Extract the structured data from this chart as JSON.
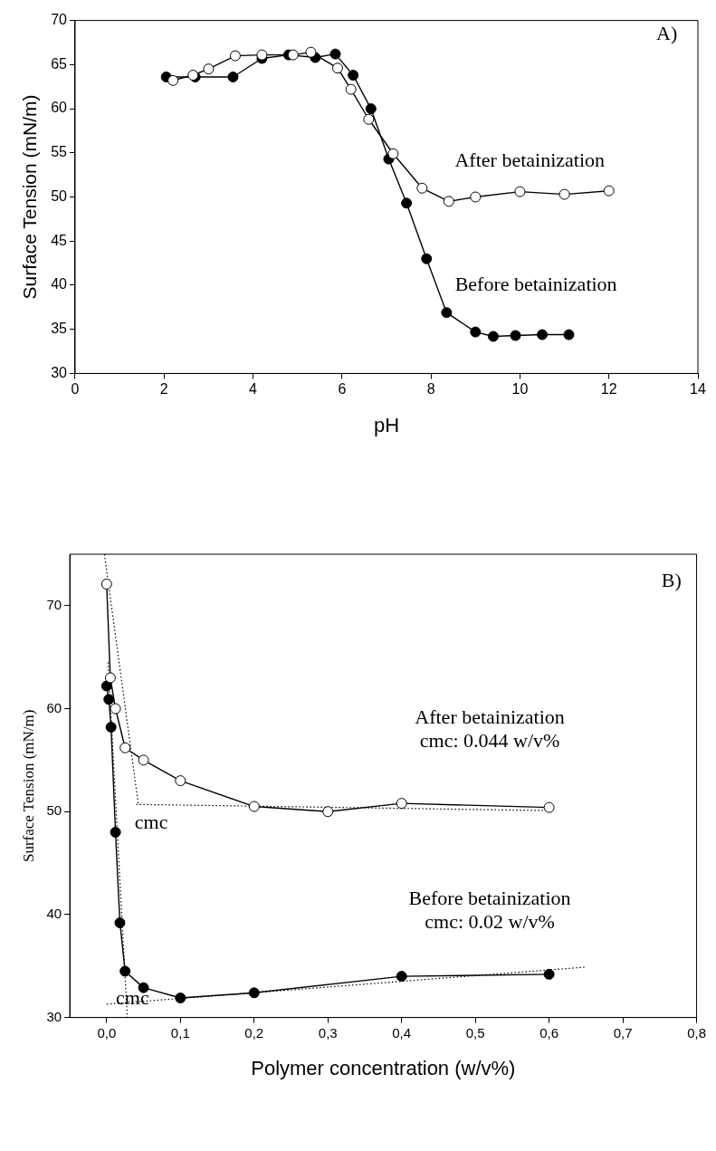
{
  "chart_data": [
    {
      "type": "line",
      "xlabel": "pH",
      "ylabel": "Surface Tension (mN/m)",
      "xlim": [
        0,
        14
      ],
      "xticks": [
        0,
        2,
        4,
        6,
        8,
        10,
        12,
        14
      ],
      "ylim": [
        30,
        70
      ],
      "yticks": [
        30,
        35,
        40,
        45,
        50,
        55,
        60,
        65,
        70
      ],
      "grid": false,
      "legend": false,
      "marker": "circle",
      "line_style": "solid",
      "series": [
        {
          "color": "#000000",
          "x": [
            2.05,
            2.7,
            3.55,
            4.2,
            4.8,
            5.4,
            5.85,
            6.25,
            6.65,
            7.05,
            7.45,
            7.9,
            8.35,
            9.0,
            9.4,
            9.9,
            10.5,
            11.1
          ],
          "values": [
            63.6,
            63.6,
            63.6,
            65.7,
            66.1,
            65.8,
            66.2,
            63.8,
            60,
            54.3,
            49.3,
            43,
            36.9,
            34.7,
            34.2,
            34.3,
            34.4,
            34.4
          ]
        },
        {
          "color": "#ffffff",
          "x": [
            2.2,
            2.65,
            3.0,
            3.6,
            4.2,
            4.9,
            5.3,
            5.9,
            6.2,
            6.6,
            7.15,
            7.8,
            8.4,
            9.0,
            10.0,
            11.0,
            12.0
          ],
          "values": [
            63.2,
            63.8,
            64.5,
            66,
            66.1,
            66.1,
            66.4,
            64.6,
            62.2,
            58.8,
            54.9,
            51,
            49.5,
            50,
            50.6,
            50.3,
            50.7
          ]
        }
      ],
      "annotations": [
        "A)",
        "After betainization",
        "Before betainization"
      ]
    },
    {
      "type": "line",
      "xlabel": "Polymer concentration (w/v%)",
      "ylabel": "Surface Tension (mN/m)",
      "xlim": [
        -0.05,
        0.8
      ],
      "xticks": [
        {
          "value": 0,
          "label": "0,0"
        },
        {
          "value": 0.1,
          "label": "0,1"
        },
        {
          "value": 0.2,
          "label": "0,2"
        },
        {
          "value": 0.3,
          "label": "0,3"
        },
        {
          "value": 0.4,
          "label": "0,4"
        },
        {
          "value": 0.5,
          "label": "0,5"
        },
        {
          "value": 0.6,
          "label": "0,6"
        },
        {
          "value": 0.7,
          "label": "0,7"
        },
        {
          "value": 0.8,
          "label": "0,8"
        }
      ],
      "ylim": [
        30,
        75
      ],
      "yticks": [
        30,
        40,
        50,
        60,
        70
      ],
      "grid": false,
      "legend": false,
      "marker": "circle",
      "line_style": "solid",
      "series": [
        {
          "color": "#000000",
          "x": [
            0,
            0.003,
            0.006,
            0.012,
            0.018,
            0.025,
            0.05,
            0.1,
            0.2,
            0.4,
            0.6
          ],
          "values": [
            62.2,
            60.9,
            58.2,
            48,
            39.2,
            34.5,
            32.9,
            31.9,
            32.4,
            34,
            34.2
          ]
        },
        {
          "color": "#ffffff",
          "x": [
            0,
            0.005,
            0.012,
            0.025,
            0.05,
            0.1,
            0.2,
            0.3,
            0.4,
            0.6
          ],
          "values": [
            72.1,
            63,
            60,
            56.2,
            55,
            53,
            50.5,
            50,
            50.8,
            50.4
          ]
        },
        {
          "type": "line",
          "color": "#000000",
          "marker": "none",
          "line_style": "dotted",
          "x": [
            -0.003,
            0.043
          ],
          "values": [
            75,
            50.7
          ]
        },
        {
          "type": "line",
          "color": "#000000",
          "marker": "none",
          "line_style": "dotted",
          "x": [
            0.04,
            0.6
          ],
          "values": [
            50.7,
            50.1
          ]
        },
        {
          "type": "line",
          "color": "#000000",
          "marker": "none",
          "line_style": "dotted",
          "x": [
            0.002,
            0.028
          ],
          "values": [
            64.5,
            30
          ]
        },
        {
          "type": "line",
          "color": "#000000",
          "marker": "none",
          "line_style": "dotted",
          "x": [
            0,
            0.65
          ],
          "values": [
            31.3,
            34.9
          ]
        }
      ],
      "annotations": [
        "B)",
        "After betainization\ncmc: 0.044 w/v%",
        "Before betainization\ncmc: 0.02 w/v%",
        "cmc",
        "cmc"
      ]
    }
  ]
}
